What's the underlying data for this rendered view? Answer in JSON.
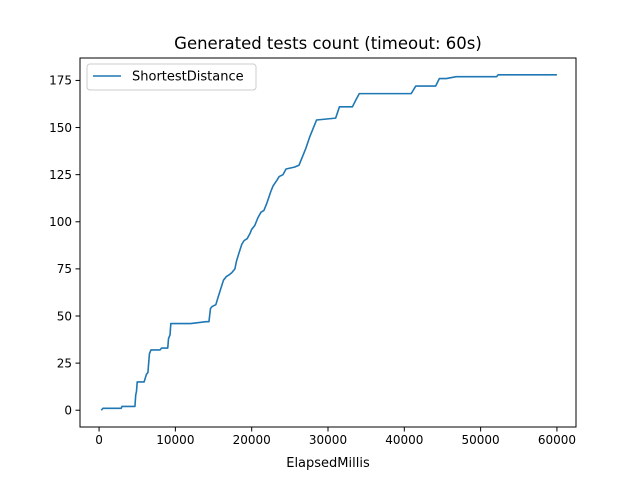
{
  "chart_data": {
    "type": "line",
    "title": "Generated tests count (timeout: 60s)",
    "xlabel": "ElapsedMillis",
    "ylabel": "",
    "xlim": [
      -2500,
      62500
    ],
    "ylim": [
      -8.9,
      186.9
    ],
    "xticks": [
      0,
      10000,
      20000,
      30000,
      40000,
      50000,
      60000
    ],
    "yticks": [
      0,
      25,
      50,
      75,
      100,
      125,
      150,
      175
    ],
    "grid": false,
    "legend_position": "upper-left",
    "series": [
      {
        "name": "ShortestDistance",
        "color": "#1f77b4",
        "points": [
          [
            300,
            0
          ],
          [
            500,
            1
          ],
          [
            2900,
            1
          ],
          [
            3000,
            2
          ],
          [
            4700,
            2
          ],
          [
            4800,
            8
          ],
          [
            4900,
            10
          ],
          [
            5000,
            15
          ],
          [
            5900,
            15
          ],
          [
            6200,
            19
          ],
          [
            6400,
            20
          ],
          [
            6600,
            30
          ],
          [
            6800,
            32
          ],
          [
            8000,
            32
          ],
          [
            8200,
            33
          ],
          [
            9000,
            33
          ],
          [
            9100,
            38
          ],
          [
            9300,
            40
          ],
          [
            9400,
            46
          ],
          [
            11700,
            46
          ],
          [
            12000,
            46
          ],
          [
            14000,
            47
          ],
          [
            14400,
            47
          ],
          [
            14600,
            54
          ],
          [
            14800,
            55
          ],
          [
            15300,
            56
          ],
          [
            15600,
            60
          ],
          [
            16300,
            69
          ],
          [
            16700,
            71
          ],
          [
            17100,
            72
          ],
          [
            17400,
            73
          ],
          [
            17800,
            75
          ],
          [
            18000,
            79
          ],
          [
            18300,
            83
          ],
          [
            18700,
            88
          ],
          [
            19000,
            90
          ],
          [
            19400,
            91
          ],
          [
            19800,
            94
          ],
          [
            20000,
            96
          ],
          [
            20400,
            98
          ],
          [
            20800,
            102
          ],
          [
            21200,
            105
          ],
          [
            21600,
            106
          ],
          [
            22000,
            110
          ],
          [
            22500,
            116
          ],
          [
            22800,
            119
          ],
          [
            23300,
            122
          ],
          [
            23600,
            124
          ],
          [
            24100,
            125
          ],
          [
            24500,
            128
          ],
          [
            25600,
            129
          ],
          [
            26200,
            130
          ],
          [
            26700,
            135
          ],
          [
            27100,
            139
          ],
          [
            27600,
            145
          ],
          [
            28000,
            149
          ],
          [
            28500,
            154
          ],
          [
            31000,
            155
          ],
          [
            31500,
            161
          ],
          [
            33200,
            161
          ],
          [
            33700,
            165
          ],
          [
            34100,
            168
          ],
          [
            40900,
            168
          ],
          [
            41500,
            172
          ],
          [
            44100,
            172
          ],
          [
            44600,
            176
          ],
          [
            45500,
            176
          ],
          [
            46800,
            177
          ],
          [
            52100,
            177
          ],
          [
            52300,
            178
          ],
          [
            60000,
            178
          ]
        ]
      }
    ]
  }
}
